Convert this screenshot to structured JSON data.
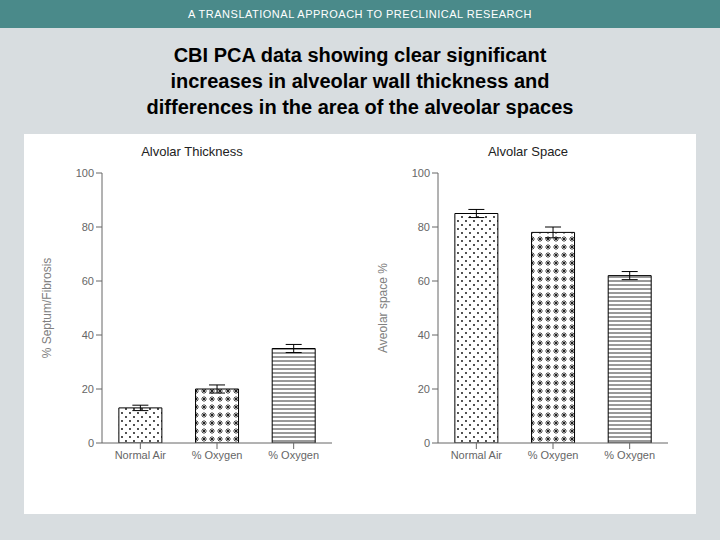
{
  "title": "CBI PCA data showing clear significant\nincreases in alveolar wall thickness and\ndifferences in the area of the alveolar spaces",
  "annotations": [
    "A TRANSLATIONAL APPROACH TO PRECLINICAL RESEARCH"
  ],
  "chart_data": [
    {
      "type": "bar",
      "title": "Alvolar Thickness",
      "ylabel": "% Septum/Fibrosis",
      "categories": [
        "Normal Air",
        "% Oxygen",
        "% Oxygen"
      ],
      "values": [
        13,
        20,
        35
      ],
      "errors": [
        1,
        1.5,
        1.5
      ],
      "color": "white",
      "ylim": [
        0,
        100
      ],
      "yticks": [
        0,
        20,
        40,
        60,
        80,
        100
      ],
      "grid": false
    },
    {
      "type": "bar",
      "title": "Alvolar Space",
      "ylabel": "Aveolar space %",
      "categories": [
        "Normal Air",
        "% Oxygen",
        "% Oxygen"
      ],
      "values": [
        85,
        78,
        62
      ],
      "errors": [
        1.5,
        2,
        1.5
      ],
      "color": "white",
      "ylim": [
        0,
        100
      ],
      "yticks": [
        0,
        20,
        40,
        60,
        80,
        100
      ],
      "grid": false
    }
  ]
}
